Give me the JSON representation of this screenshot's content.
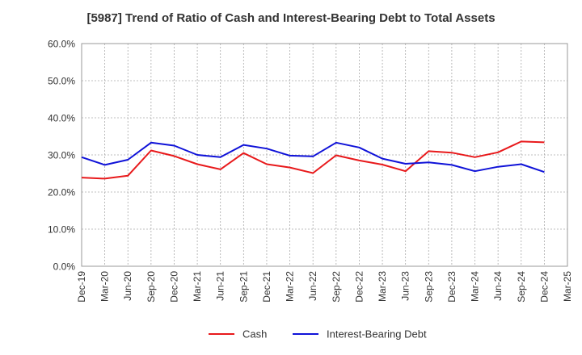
{
  "chart_data": {
    "type": "line",
    "title": "[5987]  Trend of Ratio of Cash and Interest-Bearing Debt to Total Assets",
    "xlabel": "",
    "ylabel": "",
    "categories": [
      "Dec-19",
      "Mar-20",
      "Jun-20",
      "Sep-20",
      "Dec-20",
      "Mar-21",
      "Jun-21",
      "Sep-21",
      "Dec-21",
      "Mar-22",
      "Jun-22",
      "Sep-22",
      "Dec-22",
      "Mar-23",
      "Jun-23",
      "Sep-23",
      "Dec-23",
      "Mar-24",
      "Jun-24",
      "Sep-24",
      "Dec-24",
      "Mar-25"
    ],
    "ylim": [
      0,
      60
    ],
    "yticks": [
      "0.0%",
      "10.0%",
      "20.0%",
      "30.0%",
      "40.0%",
      "50.0%",
      "60.0%"
    ],
    "grid": true,
    "legend_position": "bottom",
    "series": [
      {
        "name": "Cash",
        "color": "#e8191b",
        "values": [
          23.9,
          23.6,
          24.4,
          31.2,
          29.7,
          27.5,
          26.1,
          30.5,
          27.5,
          26.6,
          25.1,
          29.9,
          28.5,
          27.4,
          25.6,
          31.0,
          30.6,
          29.4,
          30.7,
          33.6,
          33.4,
          null
        ]
      },
      {
        "name": "Interest-Bearing Debt",
        "color": "#0f12d8",
        "values": [
          29.4,
          27.3,
          28.7,
          33.3,
          32.5,
          30.0,
          29.4,
          32.7,
          31.7,
          29.8,
          29.6,
          33.3,
          32.0,
          29.0,
          27.6,
          28.0,
          27.3,
          25.6,
          26.8,
          27.5,
          25.4,
          null
        ]
      }
    ]
  }
}
